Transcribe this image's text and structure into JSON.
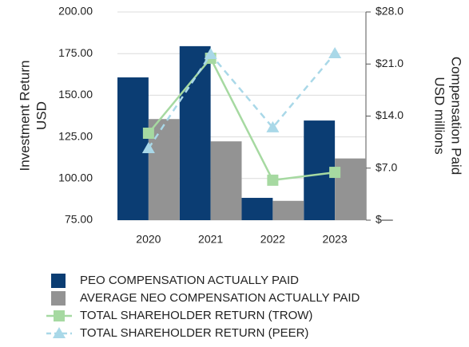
{
  "chart_data": {
    "type": "bar",
    "y_title": [
      "Investment Return",
      "USD"
    ],
    "y2_title": [
      "Compensation Paid",
      "USD millions"
    ],
    "categories": [
      "2020",
      "2021",
      "2022",
      "2023"
    ],
    "ylim": [
      75,
      200
    ],
    "yticks": [
      {
        "value": 75,
        "label": "75.00"
      },
      {
        "value": 100,
        "label": "100.00"
      },
      {
        "value": 125,
        "label": "125.00"
      },
      {
        "value": 150,
        "label": "150.00"
      },
      {
        "value": 175,
        "label": "175.00"
      },
      {
        "value": 200,
        "label": "200.00"
      }
    ],
    "y2lim": [
      0,
      28
    ],
    "y2ticks": [
      {
        "value": 0,
        "label": "$—"
      },
      {
        "value": 7,
        "label": "$7.0"
      },
      {
        "value": 14,
        "label": "$14.0"
      },
      {
        "value": 21,
        "label": "$21.0"
      },
      {
        "value": 28,
        "label": "$28.0"
      }
    ],
    "grid": true,
    "series": [
      {
        "name": "PEO COMPENSATION ACTUALLY PAID",
        "type": "bar",
        "axis": "y2",
        "color": "#0b3d73",
        "values": [
          19.2,
          23.4,
          3.0,
          13.4
        ]
      },
      {
        "name": "AVERAGE NEO COMPENSATION ACTUALLY PAID",
        "type": "bar",
        "axis": "y2",
        "color": "#939393",
        "values": [
          13.6,
          10.6,
          2.6,
          8.3
        ]
      },
      {
        "name": "TOTAL SHAREHOLDER RETURN (TROW)",
        "type": "line",
        "marker": "square",
        "dashed": false,
        "color": "#a6d9a1",
        "values": [
          127.2,
          172.2,
          99.0,
          103.7
        ]
      },
      {
        "name": "TOTAL SHAREHOLDER RETURN (PEER)",
        "type": "line",
        "marker": "triangle",
        "dashed": true,
        "color": "#a9d8e8",
        "values": [
          118.1,
          174.6,
          130.6,
          175.1
        ]
      }
    ]
  }
}
